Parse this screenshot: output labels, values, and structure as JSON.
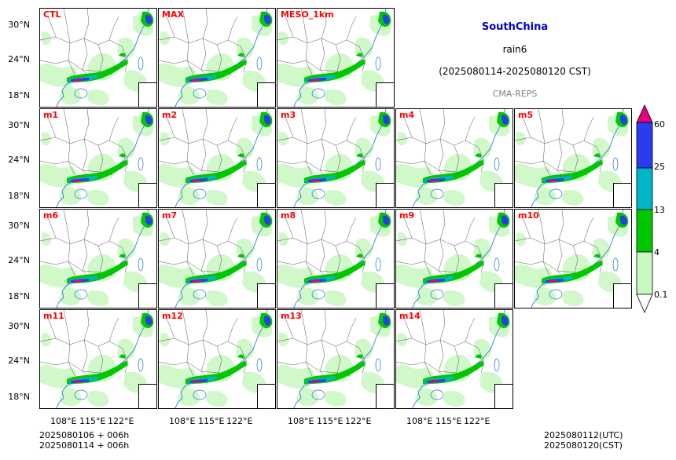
{
  "title": {
    "region": "SouthChina",
    "variable": "rain6",
    "period": "(2025080114-2025080120 CST)",
    "system": "CMA-REPS",
    "region_color": "#0000cc",
    "system_color": "#808080"
  },
  "panels": [
    "CTL",
    "MAX",
    "MESO_1km",
    "m1",
    "m2",
    "m3",
    "m4",
    "m5",
    "m6",
    "m7",
    "m8",
    "m9",
    "m10",
    "m11",
    "m12",
    "m13",
    "m14"
  ],
  "panel_label_color": "#ff0000",
  "axes": {
    "lat_ticks": [
      "30°N",
      "24°N",
      "18°N"
    ],
    "lon_ticks": [
      "108°E",
      "115°E",
      "122°E"
    ]
  },
  "colorbar": {
    "levels": [
      "60",
      "25",
      "13",
      "4",
      "0.1"
    ],
    "colors": [
      "#e6007e",
      "#2b3cf0",
      "#00b5c8",
      "#00c800",
      "#c8f7c0"
    ]
  },
  "footer": {
    "left_line1": "2025080106  +  006h",
    "left_line2": "2025080114  +  006h",
    "right_line1": "2025080112(UTC)",
    "right_line2": "2025080120(CST)"
  }
}
